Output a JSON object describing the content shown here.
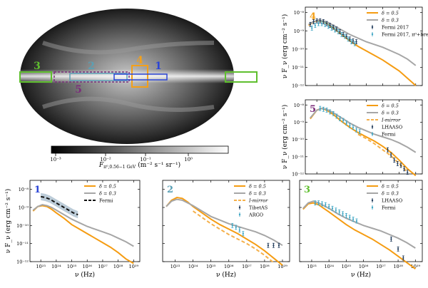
{
  "skymap": {
    "colorbar_label": "F",
    "colorbar_label_sub": "π⁰,0.56−1 GeV",
    "colorbar_label_units": "(m⁻² s⁻¹ sr⁻¹)",
    "colorbar_ticks": [
      "10⁻³",
      "10⁻²",
      "10⁻¹",
      "10⁰"
    ],
    "regions": [
      {
        "id": "1",
        "color": "#2b45d6"
      },
      {
        "id": "2",
        "color": "#5aa0b5"
      },
      {
        "id": "3",
        "color": "#5fbf2e"
      },
      {
        "id": "4",
        "color": "#f4a018"
      },
      {
        "id": "5",
        "color": "#7b2d7b"
      }
    ]
  },
  "chart_data": [
    {
      "type": "line",
      "panel": "4",
      "xlim_log10": [
        22.3,
        29.4
      ],
      "ylim_log10": [
        -12,
        -7.7
      ],
      "ylabel": "ν F_ν (erg cm⁻² s⁻¹)",
      "xlabel": "",
      "series": [
        {
          "name": "δ = 0.5",
          "color": "#f59c12",
          "x": [
            22.5,
            22.8,
            23.1,
            23.4,
            23.7,
            24.0,
            24.5,
            25.0,
            25.5,
            26.0,
            26.5,
            27.0,
            27.5,
            28.0,
            28.5,
            29.0
          ],
          "y": [
            -8.7,
            -8.5,
            -8.45,
            -8.5,
            -8.65,
            -8.85,
            -9.2,
            -9.55,
            -9.85,
            -10.1,
            -10.35,
            -10.6,
            -10.9,
            -11.2,
            -11.6,
            -12.0
          ]
        },
        {
          "name": "δ = 0.3",
          "color": "#a6a6a6",
          "x": [
            22.5,
            22.8,
            23.1,
            23.4,
            23.7,
            24.0,
            24.5,
            25.0,
            25.5,
            26.0,
            26.5,
            27.0,
            27.5,
            28.0,
            28.5,
            29.0
          ],
          "y": [
            -8.65,
            -8.5,
            -8.4,
            -8.45,
            -8.55,
            -8.7,
            -8.95,
            -9.2,
            -9.4,
            -9.6,
            -9.75,
            -9.9,
            -10.1,
            -10.3,
            -10.55,
            -10.9
          ]
        },
        {
          "name": "Fermi 2017",
          "color": "#1f3a5a",
          "marker": "errorbar",
          "x": [
            22.6,
            22.8,
            23.0,
            23.2,
            23.4,
            23.6,
            23.8,
            24.0,
            24.2,
            24.4,
            24.6,
            24.8,
            25.0,
            25.2,
            25.4
          ],
          "y": [
            -8.65,
            -8.5,
            -8.45,
            -8.45,
            -8.5,
            -8.6,
            -8.7,
            -8.8,
            -8.9,
            -9.05,
            -9.2,
            -9.3,
            -9.45,
            -9.55,
            -9.6
          ]
        },
        {
          "name": "Fermi 2017, π⁰+brems.",
          "color": "#3ea6c4",
          "marker": "errorbar",
          "x": [
            22.7,
            22.9,
            23.1,
            23.3,
            23.5,
            23.7,
            23.9,
            24.1,
            24.3,
            24.5,
            24.7,
            24.9,
            25.1,
            25.3
          ],
          "y": [
            -8.85,
            -8.7,
            -8.6,
            -8.6,
            -8.65,
            -8.75,
            -8.85,
            -8.95,
            -9.05,
            -9.2,
            -9.3,
            -9.45,
            -9.6,
            -9.7
          ]
        }
      ]
    },
    {
      "type": "line",
      "panel": "5",
      "xlim_log10": [
        22.3,
        29.4
      ],
      "ylim_log10": [
        -12,
        -7.7
      ],
      "ylabel": "ν F_ν (erg cm⁻² s⁻¹)",
      "xlabel": "",
      "series": [
        {
          "name": "δ = 0.5",
          "color": "#f59c12",
          "x": [
            22.6,
            23.0,
            23.3,
            23.6,
            24.0,
            24.5,
            25.0,
            25.5,
            26.0,
            26.5,
            27.0,
            27.5,
            28.0,
            28.5,
            29.0
          ],
          "y": [
            -8.8,
            -8.3,
            -8.2,
            -8.3,
            -8.55,
            -8.95,
            -9.3,
            -9.6,
            -9.85,
            -10.1,
            -10.4,
            -10.75,
            -11.2,
            -11.7,
            -12.1
          ]
        },
        {
          "name": "δ = 0.3",
          "color": "#a6a6a6",
          "x": [
            22.6,
            23.0,
            23.3,
            23.6,
            24.0,
            24.5,
            25.0,
            25.5,
            26.0,
            26.5,
            27.0,
            27.5,
            28.0,
            28.5,
            29.0
          ],
          "y": [
            -8.75,
            -8.3,
            -8.2,
            -8.25,
            -8.45,
            -8.75,
            -9.05,
            -9.3,
            -9.5,
            -9.7,
            -9.85,
            -10.0,
            -10.2,
            -10.45,
            -10.75
          ]
        },
        {
          "name": "I-mirror",
          "color": "#f5b04a",
          "dash": true,
          "x": [
            25.5,
            26.0,
            26.5,
            27.0,
            27.5,
            28.0,
            28.5
          ],
          "y": [
            -9.7,
            -9.95,
            -10.25,
            -10.6,
            -10.95,
            -11.4,
            -11.9
          ]
        },
        {
          "name": "LHAASO",
          "color": "#1f3a5a",
          "marker": "errorbar",
          "x": [
            27.3,
            27.5,
            27.7,
            27.9,
            28.1,
            28.3,
            28.5
          ],
          "y": [
            -10.6,
            -10.9,
            -11.2,
            -11.4,
            -11.5,
            -11.7,
            -11.9
          ]
        },
        {
          "name": "Fermi",
          "color": "#3ea6c4",
          "marker": "errorbar",
          "x": [
            23.2,
            23.4,
            23.6,
            23.8,
            24.0,
            24.2,
            24.4,
            24.6,
            24.8,
            25.0,
            25.2,
            25.4,
            25.6
          ],
          "y": [
            -8.2,
            -8.25,
            -8.3,
            -8.4,
            -8.5,
            -8.65,
            -8.8,
            -8.9,
            -9.05,
            -9.2,
            -9.3,
            -9.45,
            -9.55
          ]
        }
      ]
    },
    {
      "type": "line",
      "panel": "1",
      "xlim_log10": [
        22.3,
        29.4
      ],
      "ylim_log10": [
        -12,
        -7.5
      ],
      "ylabel": "ν F_ν (erg cm⁻² s⁻¹)",
      "xlabel": "ν (Hz)",
      "series": [
        {
          "name": "δ = 0.5",
          "color": "#f59c12",
          "x": [
            22.5,
            22.8,
            23.1,
            23.4,
            23.7,
            24.0,
            24.5,
            25.0,
            25.5,
            26.0,
            26.5,
            27.0,
            27.5,
            28.0,
            28.5,
            29.0
          ],
          "y": [
            -9.2,
            -8.95,
            -8.9,
            -8.95,
            -9.1,
            -9.3,
            -9.6,
            -9.95,
            -10.2,
            -10.45,
            -10.7,
            -10.95,
            -11.2,
            -11.5,
            -11.85,
            -12.1
          ]
        },
        {
          "name": "δ = 0.3",
          "color": "#a6a6a6",
          "x": [
            22.5,
            22.8,
            23.1,
            23.4,
            23.7,
            24.0,
            24.5,
            25.0,
            25.5,
            26.0,
            26.5,
            27.0,
            27.5,
            28.0,
            28.5,
            29.0
          ],
          "y": [
            -9.15,
            -8.95,
            -8.85,
            -8.9,
            -9.0,
            -9.15,
            -9.4,
            -9.65,
            -9.85,
            -10.05,
            -10.2,
            -10.35,
            -10.5,
            -10.7,
            -10.9,
            -11.15
          ]
        },
        {
          "name": "Fermi",
          "color": "#111111",
          "dash": true,
          "band": true,
          "x": [
            23.0,
            23.3,
            23.6,
            23.9,
            24.2,
            24.5,
            24.8,
            25.1,
            25.4
          ],
          "y": [
            -8.4,
            -8.45,
            -8.55,
            -8.7,
            -8.85,
            -9.0,
            -9.15,
            -9.3,
            -9.4
          ]
        }
      ]
    },
    {
      "type": "line",
      "panel": "2",
      "xlim_log10": [
        22.3,
        29.4
      ],
      "ylim_log10": [
        -12,
        -7.5
      ],
      "ylabel": "",
      "xlabel": "ν (Hz)",
      "series": [
        {
          "name": "δ = 0.5",
          "color": "#f59c12",
          "x": [
            22.5,
            22.8,
            23.1,
            23.4,
            23.7,
            24.0,
            24.5,
            25.0,
            25.5,
            26.0,
            26.5,
            27.0,
            27.5,
            28.0,
            28.5,
            29.0
          ],
          "y": [
            -8.95,
            -8.6,
            -8.45,
            -8.5,
            -8.7,
            -8.95,
            -9.3,
            -9.65,
            -9.95,
            -10.2,
            -10.45,
            -10.75,
            -11.05,
            -11.4,
            -11.8,
            -12.2
          ]
        },
        {
          "name": "δ = 0.3",
          "color": "#a6a6a6",
          "x": [
            22.5,
            22.8,
            23.1,
            23.4,
            23.7,
            24.0,
            24.5,
            25.0,
            25.5,
            26.0,
            26.5,
            27.0,
            27.5,
            28.0,
            28.5,
            29.0
          ],
          "y": [
            -8.95,
            -8.65,
            -8.55,
            -8.6,
            -8.75,
            -8.9,
            -9.2,
            -9.5,
            -9.7,
            -9.9,
            -10.05,
            -10.2,
            -10.35,
            -10.55,
            -10.8,
            -11.1
          ]
        },
        {
          "name": "I-mirror",
          "color": "#f5b04a",
          "dash": true,
          "x": [
            24.0,
            24.5,
            25.0,
            25.5,
            26.0,
            26.5,
            27.0,
            27.5,
            28.0,
            28.5
          ],
          "y": [
            -9.2,
            -9.55,
            -9.9,
            -10.2,
            -10.5,
            -10.75,
            -11.0,
            -11.3,
            -11.65,
            -12.05
          ]
        },
        {
          "name": "TibetAS",
          "color": "#1f3a5a",
          "marker": "errorbar",
          "x": [
            28.2,
            28.5,
            28.8
          ],
          "y": [
            -11.1,
            -11.1,
            -11.1
          ]
        },
        {
          "name": "ARGO",
          "color": "#3ea6c4",
          "marker": "errorbar",
          "x": [
            26.2,
            26.4,
            26.6,
            26.8
          ],
          "y": [
            -10.0,
            -10.1,
            -10.25,
            -10.45
          ]
        }
      ]
    },
    {
      "type": "line",
      "panel": "3",
      "xlim_log10": [
        22.3,
        29.4
      ],
      "ylim_log10": [
        -12,
        -7.5
      ],
      "ylabel": "",
      "xlabel": "ν (Hz)",
      "series": [
        {
          "name": "δ = 0.5",
          "color": "#f59c12",
          "x": [
            22.5,
            22.8,
            23.1,
            23.4,
            23.7,
            24.0,
            24.5,
            25.0,
            25.5,
            26.0,
            26.5,
            27.0,
            27.5,
            28.0,
            28.5,
            29.0
          ],
          "y": [
            -9.1,
            -8.8,
            -8.75,
            -8.85,
            -9.05,
            -9.25,
            -9.6,
            -9.95,
            -10.25,
            -10.5,
            -10.75,
            -11.05,
            -11.35,
            -11.7,
            -12.05,
            -12.4
          ]
        },
        {
          "name": "δ = 0.3",
          "color": "#a6a6a6",
          "x": [
            22.5,
            22.8,
            23.1,
            23.4,
            23.7,
            24.0,
            24.5,
            25.0,
            25.5,
            26.0,
            26.5,
            27.0,
            27.5,
            28.0,
            28.5,
            29.0
          ],
          "y": [
            -9.05,
            -8.75,
            -8.65,
            -8.75,
            -8.9,
            -9.05,
            -9.35,
            -9.6,
            -9.8,
            -10.0,
            -10.15,
            -10.3,
            -10.5,
            -10.7,
            -10.95,
            -11.25
          ]
        },
        {
          "name": "LHAASO",
          "color": "#1f3a5a",
          "marker": "errorbar",
          "x": [
            27.6,
            28.0,
            28.3
          ],
          "y": [
            -10.75,
            -11.3,
            -11.8
          ]
        },
        {
          "name": "Fermi",
          "color": "#3ea6c4",
          "marker": "errorbar",
          "x": [
            23.2,
            23.4,
            23.6,
            23.8,
            24.0,
            24.2,
            24.4,
            24.6,
            24.8,
            25.0,
            25.2,
            25.4,
            25.6
          ],
          "y": [
            -8.75,
            -8.75,
            -8.8,
            -8.85,
            -8.95,
            -9.05,
            -9.15,
            -9.25,
            -9.35,
            -9.45,
            -9.55,
            -9.65,
            -9.75
          ]
        }
      ]
    }
  ],
  "axis_text": {
    "ylabel": "ν F_ν (erg cm⁻² s⁻¹)",
    "xlabel": "ν (Hz)",
    "xticks": [
      "10²³",
      "10²⁴",
      "10²⁵",
      "10²⁶",
      "10²⁷",
      "10²⁸",
      "10²⁹"
    ],
    "yticks_top": [
      "10⁻⁸",
      "10⁻⁹",
      "10⁻¹⁰",
      "10⁻¹¹",
      "10⁻¹²"
    ]
  }
}
